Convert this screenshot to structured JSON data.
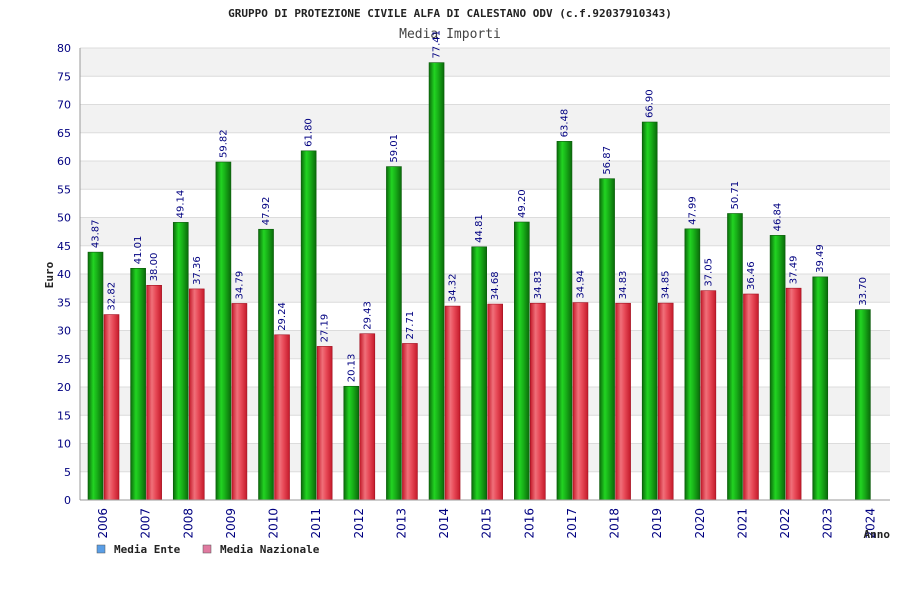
{
  "chart_data": {
    "type": "bar",
    "title": "GRUPPO DI PROTEZIONE CIVILE ALFA DI CALESTANO ODV (c.f.92037910343)",
    "subtitle": "Media Importi",
    "xlabel": "Anno",
    "ylabel": "Euro",
    "ylim": [
      0,
      80
    ],
    "ytick_step": 5,
    "grid": true,
    "legend_position": "bottom-left",
    "categories": [
      "2006",
      "2007",
      "2008",
      "2009",
      "2010",
      "2011",
      "2012",
      "2013",
      "2014",
      "2015",
      "2016",
      "2017",
      "2018",
      "2019",
      "2020",
      "2021",
      "2022",
      "2023",
      "2024"
    ],
    "series": [
      {
        "name": "Media Ente",
        "legend_color": "#5a9ee6",
        "bar_color": "#1ea51e",
        "values": [
          43.87,
          41.01,
          49.14,
          59.82,
          47.92,
          61.8,
          20.13,
          59.01,
          77.41,
          44.81,
          49.2,
          63.48,
          56.87,
          66.9,
          47.99,
          50.71,
          46.84,
          39.49,
          33.7
        ],
        "labels": [
          "43.87",
          "41.01",
          "49.14",
          "59.82",
          "47.92",
          "61.80",
          "20.13",
          "59.01",
          "77.41",
          "44.81",
          "49.20",
          "63.48",
          "56.87",
          "66.90",
          "47.99",
          "50.71",
          "46.84",
          "39.49",
          "33.70"
        ]
      },
      {
        "name": "Media Nazionale",
        "legend_color": "#e07aa0",
        "bar_color": "#e23a4a",
        "values": [
          32.82,
          38.0,
          37.36,
          34.79,
          29.24,
          27.19,
          29.43,
          27.71,
          34.32,
          34.68,
          34.83,
          34.94,
          34.83,
          34.85,
          37.05,
          36.46,
          37.49,
          null,
          null
        ],
        "labels": [
          "32.82",
          "38.00",
          "37.36",
          "34.79",
          "29.24",
          "27.19",
          "29.43",
          "27.71",
          "34.32",
          "34.68",
          "34.83",
          "34.94",
          "34.83",
          "34.85",
          "37.05",
          "36.46",
          "37.49",
          "",
          ""
        ]
      }
    ]
  }
}
